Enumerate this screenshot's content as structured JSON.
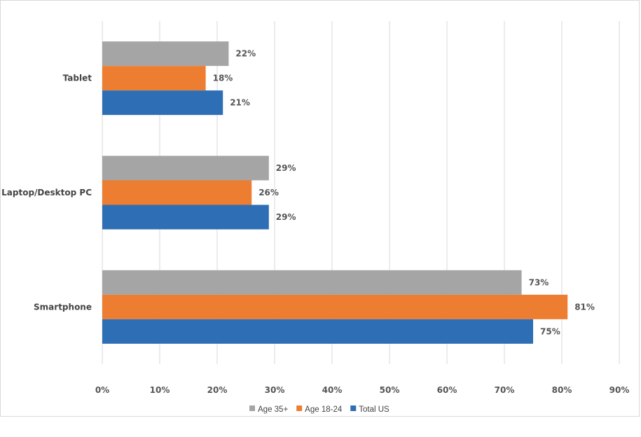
{
  "chart_data": {
    "type": "bar",
    "orientation": "horizontal",
    "categories": [
      "Tablet",
      "Laptop/Desktop PC",
      "Smartphone"
    ],
    "series": [
      {
        "name": "Age 35+",
        "color": "#a5a5a5",
        "values": [
          22,
          29,
          73
        ],
        "labels": [
          "22%",
          "29%",
          "73%"
        ]
      },
      {
        "name": "Age 18-24",
        "color": "#ed7d31",
        "values": [
          18,
          26,
          81
        ],
        "labels": [
          "18%",
          "26%",
          "81%"
        ]
      },
      {
        "name": "Total US",
        "color": "#2e6eb5",
        "values": [
          21,
          29,
          75
        ],
        "labels": [
          "21%",
          "29%",
          "75%"
        ]
      }
    ],
    "xlim": [
      0,
      90
    ],
    "xticks": [
      "0%",
      "10%",
      "20%",
      "30%",
      "40%",
      "50%",
      "60%",
      "70%",
      "80%",
      "90%"
    ],
    "grid": "vertical",
    "legend_position": "bottom"
  }
}
